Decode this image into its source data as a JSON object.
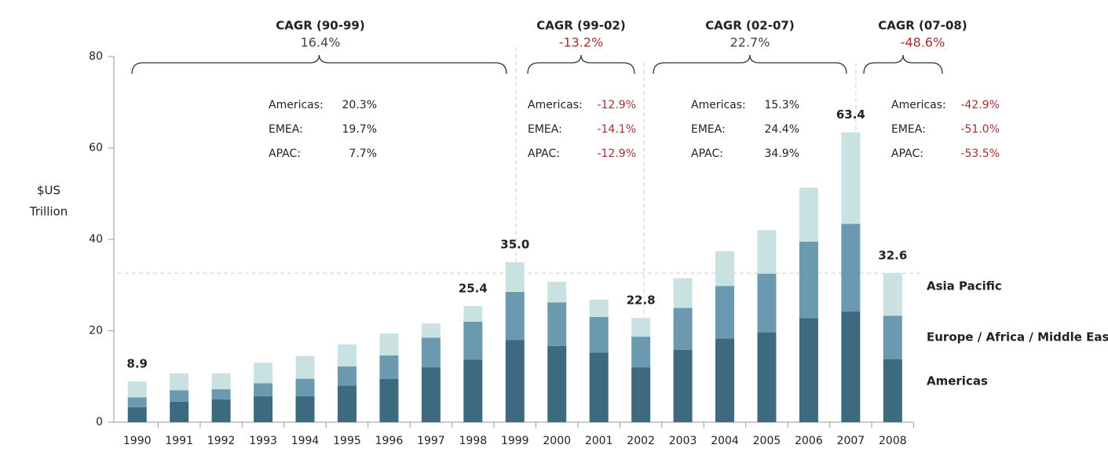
{
  "chart_data": {
    "type": "stacked_bar",
    "ylabel": [
      "$US",
      "Trillion"
    ],
    "categories": [
      "1990",
      "1991",
      "1992",
      "1993",
      "1994",
      "1995",
      "1996",
      "1997",
      "1998",
      "1999",
      "2000",
      "2001",
      "2002",
      "2003",
      "2004",
      "2005",
      "2006",
      "2007",
      "2008"
    ],
    "series": [
      {
        "name": "Americas",
        "color": "#3e6a80",
        "values": [
          3.3,
          4.5,
          5.0,
          5.7,
          5.7,
          8.0,
          9.5,
          12.0,
          13.7,
          18.0,
          16.7,
          15.2,
          12.0,
          15.8,
          18.3,
          19.7,
          22.8,
          24.2,
          13.8
        ]
      },
      {
        "name": "Europe / Africa / Middle East",
        "color": "#6b9ab0",
        "values": [
          2.1,
          2.5,
          2.2,
          2.8,
          3.8,
          4.2,
          5.1,
          6.5,
          8.3,
          10.5,
          9.5,
          7.8,
          6.7,
          9.2,
          11.5,
          12.8,
          16.7,
          19.2,
          9.5
        ]
      },
      {
        "name": "Asia Pacific",
        "color": "#c9e2e1",
        "values": [
          3.5,
          3.7,
          3.5,
          4.5,
          5.0,
          4.8,
          4.8,
          3.1,
          3.4,
          6.5,
          4.5,
          3.8,
          4.1,
          6.5,
          7.6,
          9.5,
          11.8,
          20.0,
          9.3
        ]
      }
    ],
    "totals": [
      {
        "category": "1990",
        "value": 8.9
      },
      {
        "category": "1998",
        "value": 25.4
      },
      {
        "category": "1999",
        "value": 35.0,
        "label": "35.0"
      },
      {
        "category": "2002",
        "value": 22.8
      },
      {
        "category": "2007",
        "value": 63.4
      },
      {
        "category": "2008",
        "value": 32.6
      }
    ],
    "reference_line": 32.6,
    "ylim": [
      0,
      80
    ],
    "yticks": [
      0,
      20,
      40,
      60,
      80
    ],
    "periods": [
      {
        "title": "CAGR (90-99)",
        "total": "16.4%",
        "rows": [
          {
            "region": "Americas:",
            "value": "20.3%"
          },
          {
            "region": "EMEA:",
            "value": "19.7%"
          },
          {
            "region": "APAC:",
            "value": "7.7%"
          }
        ]
      },
      {
        "title": "CAGR (99-02)",
        "total": "-13.2%",
        "rows": [
          {
            "region": "Americas:",
            "value": "-12.9%"
          },
          {
            "region": "EMEA:",
            "value": "-14.1%"
          },
          {
            "region": "APAC:",
            "value": "-12.9%"
          }
        ]
      },
      {
        "title": "CAGR (02-07)",
        "total": "22.7%",
        "rows": [
          {
            "region": "Americas:",
            "value": "15.3%"
          },
          {
            "region": "EMEA:",
            "value": "24.4%"
          },
          {
            "region": "APAC:",
            "value": "34.9%"
          }
        ]
      },
      {
        "title": "CAGR (07-08)",
        "total": "-48.6%",
        "rows": [
          {
            "region": "Americas:",
            "value": "-42.9%"
          },
          {
            "region": "EMEA:",
            "value": "-51.0%"
          },
          {
            "region": "APAC:",
            "value": "-53.5%"
          }
        ]
      }
    ]
  }
}
